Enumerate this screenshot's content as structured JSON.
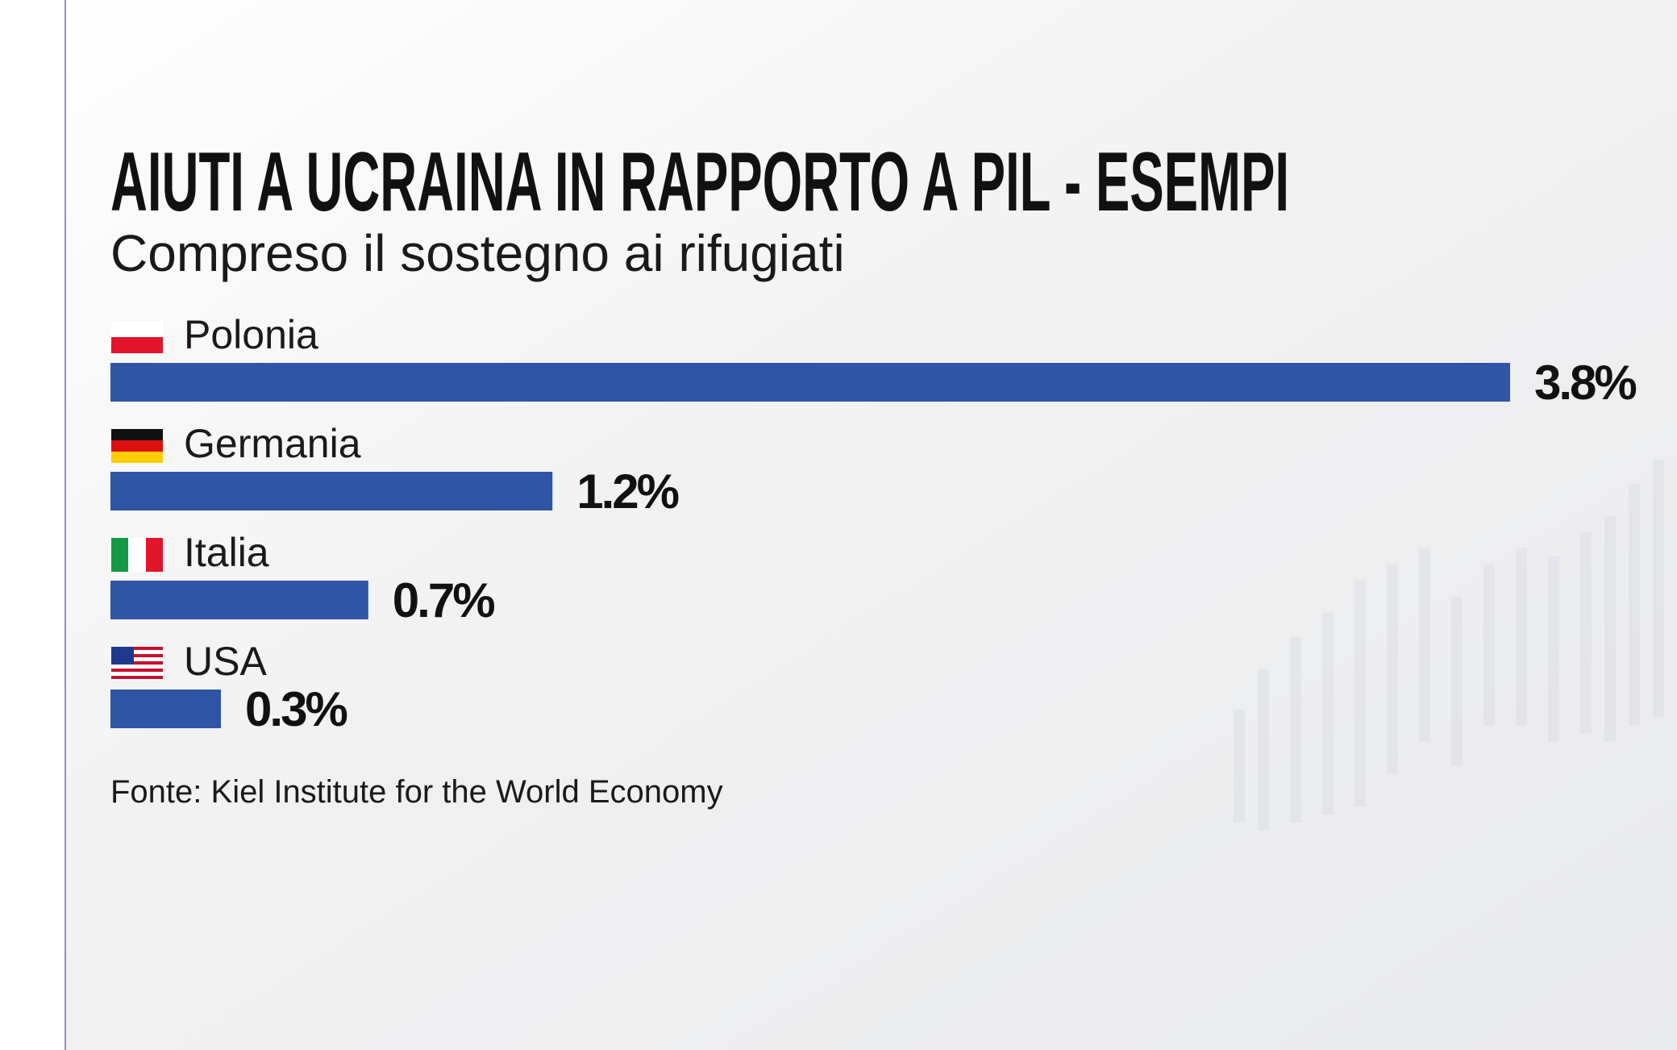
{
  "chart_data": {
    "type": "hbar",
    "title": "AIUTI A UCRAINA IN RAPPORTO A PIL - ESEMPI",
    "subtitle": "Compreso il sostegno ai rifugiati",
    "categories": [
      "Polonia",
      "Germania",
      "Italia",
      "USA"
    ],
    "values": [
      3.8,
      1.2,
      0.7,
      0.3
    ],
    "value_labels": [
      "3.8%",
      "1.2%",
      "0.7%",
      "0.3%"
    ],
    "color": "#2f55a4",
    "source": "Fonte: Kiel Institute for the World Economy"
  }
}
